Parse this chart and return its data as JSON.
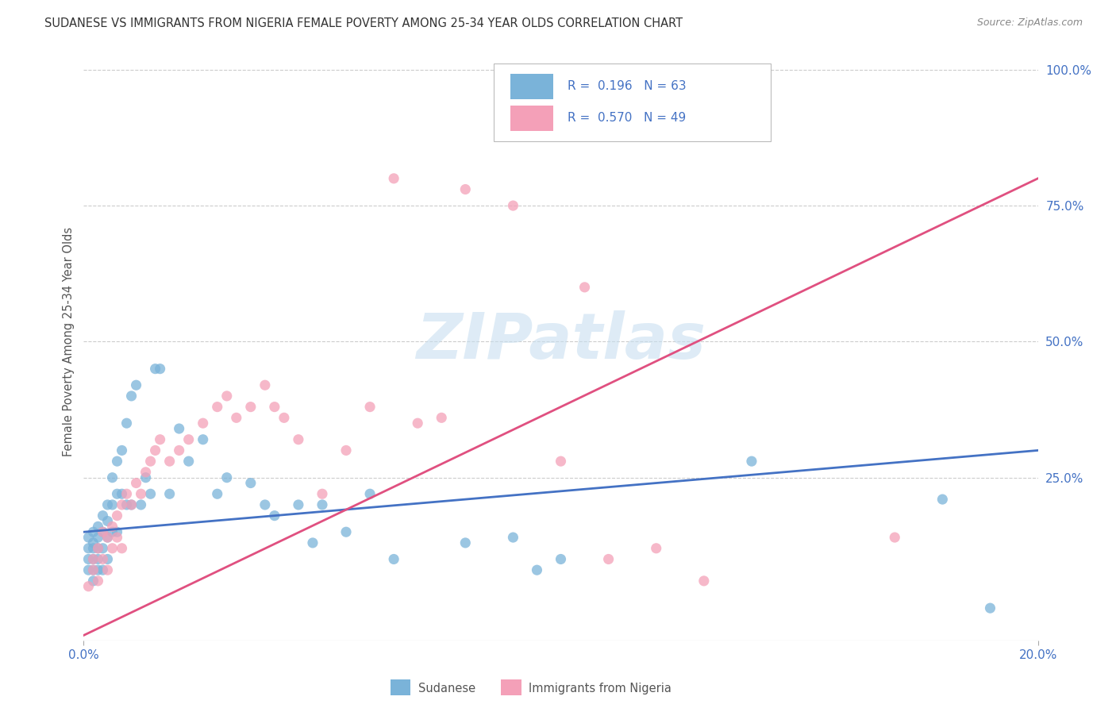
{
  "title": "SUDANESE VS IMMIGRANTS FROM NIGERIA FEMALE POVERTY AMONG 25-34 YEAR OLDS CORRELATION CHART",
  "source": "Source: ZipAtlas.com",
  "ylabel": "Female Poverty Among 25-34 Year Olds",
  "ylabel_right_ticks": [
    "100.0%",
    "75.0%",
    "50.0%",
    "25.0%"
  ],
  "ylabel_right_vals": [
    1.0,
    0.75,
    0.5,
    0.25
  ],
  "sudanese_color": "#7ab3d9",
  "sudanese_line_color": "#4472c4",
  "nigeria_color": "#f4a0b8",
  "nigeria_line_color": "#e05080",
  "background_color": "#ffffff",
  "grid_color": "#cccccc",
  "xlim": [
    0.0,
    0.2
  ],
  "ylim": [
    -0.05,
    1.05
  ],
  "sudanese_x": [
    0.001,
    0.001,
    0.001,
    0.001,
    0.002,
    0.002,
    0.002,
    0.002,
    0.002,
    0.002,
    0.003,
    0.003,
    0.003,
    0.003,
    0.003,
    0.004,
    0.004,
    0.004,
    0.004,
    0.005,
    0.005,
    0.005,
    0.005,
    0.006,
    0.006,
    0.006,
    0.007,
    0.007,
    0.007,
    0.008,
    0.008,
    0.009,
    0.009,
    0.01,
    0.01,
    0.011,
    0.012,
    0.013,
    0.014,
    0.015,
    0.016,
    0.018,
    0.02,
    0.022,
    0.025,
    0.028,
    0.03,
    0.035,
    0.038,
    0.04,
    0.045,
    0.048,
    0.05,
    0.055,
    0.06,
    0.065,
    0.08,
    0.09,
    0.095,
    0.1,
    0.14,
    0.18,
    0.19
  ],
  "sudanese_y": [
    0.14,
    0.12,
    0.1,
    0.08,
    0.15,
    0.13,
    0.12,
    0.1,
    0.08,
    0.06,
    0.16,
    0.14,
    0.12,
    0.1,
    0.08,
    0.18,
    0.15,
    0.12,
    0.08,
    0.2,
    0.17,
    0.14,
    0.1,
    0.25,
    0.2,
    0.15,
    0.28,
    0.22,
    0.15,
    0.3,
    0.22,
    0.35,
    0.2,
    0.4,
    0.2,
    0.42,
    0.2,
    0.25,
    0.22,
    0.45,
    0.45,
    0.22,
    0.34,
    0.28,
    0.32,
    0.22,
    0.25,
    0.24,
    0.2,
    0.18,
    0.2,
    0.13,
    0.2,
    0.15,
    0.22,
    0.1,
    0.13,
    0.14,
    0.08,
    0.1,
    0.28,
    0.21,
    0.01
  ],
  "nigeria_x": [
    0.001,
    0.002,
    0.002,
    0.003,
    0.003,
    0.004,
    0.004,
    0.005,
    0.005,
    0.006,
    0.006,
    0.007,
    0.007,
    0.008,
    0.008,
    0.009,
    0.01,
    0.011,
    0.012,
    0.013,
    0.014,
    0.015,
    0.016,
    0.018,
    0.02,
    0.022,
    0.025,
    0.028,
    0.03,
    0.032,
    0.035,
    0.038,
    0.04,
    0.042,
    0.045,
    0.05,
    0.055,
    0.06,
    0.065,
    0.07,
    0.075,
    0.08,
    0.09,
    0.1,
    0.105,
    0.11,
    0.12,
    0.13,
    0.17
  ],
  "nigeria_y": [
    0.05,
    0.1,
    0.08,
    0.12,
    0.06,
    0.15,
    0.1,
    0.14,
    0.08,
    0.16,
    0.12,
    0.18,
    0.14,
    0.2,
    0.12,
    0.22,
    0.2,
    0.24,
    0.22,
    0.26,
    0.28,
    0.3,
    0.32,
    0.28,
    0.3,
    0.32,
    0.35,
    0.38,
    0.4,
    0.36,
    0.38,
    0.42,
    0.38,
    0.36,
    0.32,
    0.22,
    0.3,
    0.38,
    0.8,
    0.35,
    0.36,
    0.78,
    0.75,
    0.28,
    0.6,
    0.1,
    0.12,
    0.06,
    0.14
  ],
  "legend_R1": "0.196",
  "legend_N1": "63",
  "legend_R2": "0.570",
  "legend_N2": "49",
  "watermark_text": "ZIPatlas",
  "watermark_color": "#c8dff0",
  "bottom_legend_sudanese": "Sudanese",
  "bottom_legend_nigeria": "Immigrants from Nigeria"
}
